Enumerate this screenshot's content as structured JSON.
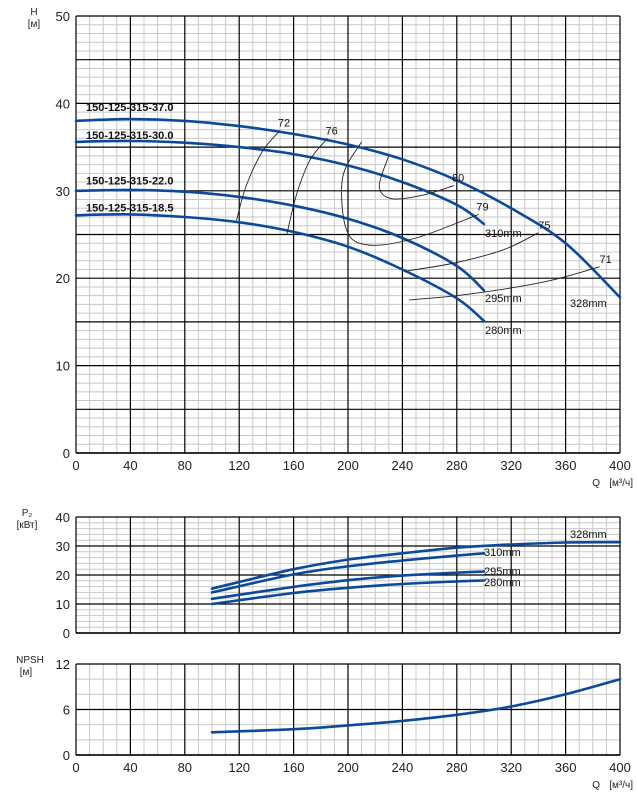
{
  "chart_data": [
    {
      "type": "line",
      "title": "",
      "ylabel": "H",
      "yunit": "[м]",
      "xlabel": "Q",
      "xunit": "[м³/ч]",
      "xlim": [
        0,
        400
      ],
      "ylim": [
        0,
        50
      ],
      "xticks": [
        "0",
        "40",
        "80",
        "120",
        "160",
        "200",
        "240",
        "280",
        "320",
        "360",
        "400"
      ],
      "yticks": [
        "0",
        "10",
        "20",
        "30",
        "40",
        "50"
      ],
      "grid": true,
      "series": [
        {
          "name": "150-125-315-37.0",
          "diameter": "328mm",
          "x": [
            0,
            40,
            80,
            120,
            160,
            200,
            240,
            280,
            320,
            360,
            400
          ],
          "y": [
            38.0,
            38.2,
            38.0,
            37.4,
            36.5,
            35.3,
            33.6,
            31.2,
            28.0,
            24.0,
            17.8
          ]
        },
        {
          "name": "150-125-315-30.0",
          "diameter": "310mm",
          "x": [
            0,
            40,
            80,
            120,
            160,
            200,
            240,
            280,
            300
          ],
          "y": [
            35.6,
            35.7,
            35.5,
            35.0,
            34.2,
            32.9,
            31.0,
            28.4,
            26.2
          ]
        },
        {
          "name": "150-125-315-22.0",
          "diameter": "295mm",
          "x": [
            0,
            40,
            80,
            120,
            160,
            200,
            240,
            280,
            300
          ],
          "y": [
            30.0,
            30.1,
            29.9,
            29.3,
            28.3,
            26.8,
            24.6,
            21.4,
            18.6
          ]
        },
        {
          "name": "150-125-315-18.5",
          "diameter": "280mm",
          "x": [
            0,
            40,
            80,
            120,
            160,
            200,
            240,
            280,
            300
          ],
          "y": [
            27.2,
            27.3,
            27.0,
            26.4,
            25.3,
            23.6,
            21.0,
            17.7,
            15.1
          ]
        }
      ],
      "efficiency_contours": [
        {
          "label": "72",
          "x": [
            118,
            125,
            137,
            150
          ],
          "y": [
            26.6,
            30.5,
            34.5,
            36.9
          ]
        },
        {
          "label": "76",
          "x": [
            155,
            162,
            172,
            185
          ],
          "y": [
            25.0,
            29.5,
            33.5,
            36.0
          ]
        },
        {
          "label": "79",
          "x": [
            210,
            196,
            199,
            215,
            250,
            296
          ],
          "y": [
            35.6,
            31.5,
            25.5,
            23.8,
            24.6,
            27.3
          ]
        },
        {
          "label": "80",
          "x": [
            230,
            223,
            232,
            255,
            278
          ],
          "y": [
            34.0,
            30.5,
            29.1,
            29.5,
            30.6
          ]
        },
        {
          "label": "75",
          "x": [
            242,
            280,
            315,
            340
          ],
          "y": [
            20.8,
            21.8,
            23.3,
            25.2
          ]
        },
        {
          "label": "71",
          "x": [
            245,
            290,
            345,
            385
          ],
          "y": [
            17.5,
            18.2,
            19.6,
            21.3
          ]
        }
      ]
    },
    {
      "type": "line",
      "ylabel": "P₂",
      "yunit": "[кВт]",
      "xlim": [
        0,
        400
      ],
      "ylim": [
        0,
        40
      ],
      "yticks": [
        "0",
        "10",
        "20",
        "30",
        "40"
      ],
      "grid": true,
      "series": [
        {
          "name": "328mm",
          "x": [
            100,
            160,
            200,
            240,
            280,
            320,
            360,
            400
          ],
          "y": [
            15.3,
            22.0,
            25.3,
            27.5,
            29.4,
            30.5,
            31.2,
            31.3
          ]
        },
        {
          "name": "310mm",
          "x": [
            100,
            160,
            200,
            240,
            280,
            300
          ],
          "y": [
            14.0,
            20.2,
            23.0,
            25.0,
            26.7,
            27.5
          ]
        },
        {
          "name": "295mm",
          "x": [
            100,
            160,
            200,
            240,
            280,
            300
          ],
          "y": [
            11.8,
            15.9,
            18.2,
            19.8,
            20.8,
            21.2
          ]
        },
        {
          "name": "280mm",
          "x": [
            100,
            160,
            200,
            240,
            280,
            300
          ],
          "y": [
            10.0,
            13.8,
            15.6,
            16.9,
            17.8,
            18.1
          ]
        }
      ]
    },
    {
      "type": "line",
      "ylabel": "NPSH",
      "yunit": "[м]",
      "xlabel": "Q",
      "xunit": "[м³/ч]",
      "xlim": [
        0,
        400
      ],
      "ylim": [
        0,
        12
      ],
      "xticks": [
        "0",
        "40",
        "80",
        "120",
        "160",
        "200",
        "240",
        "280",
        "320",
        "360",
        "400"
      ],
      "yticks": [
        "0",
        "6",
        "12"
      ],
      "grid": true,
      "series": [
        {
          "name": "NPSH",
          "x": [
            100,
            160,
            200,
            240,
            280,
            320,
            360,
            400
          ],
          "y": [
            3.0,
            3.4,
            3.9,
            4.5,
            5.3,
            6.4,
            8.0,
            10.0
          ]
        }
      ]
    }
  ],
  "colors": {
    "curve": "#0a4a9c",
    "major_grid": "#000000",
    "minor_grid": "#c8c8c8",
    "contour": "#222222"
  }
}
